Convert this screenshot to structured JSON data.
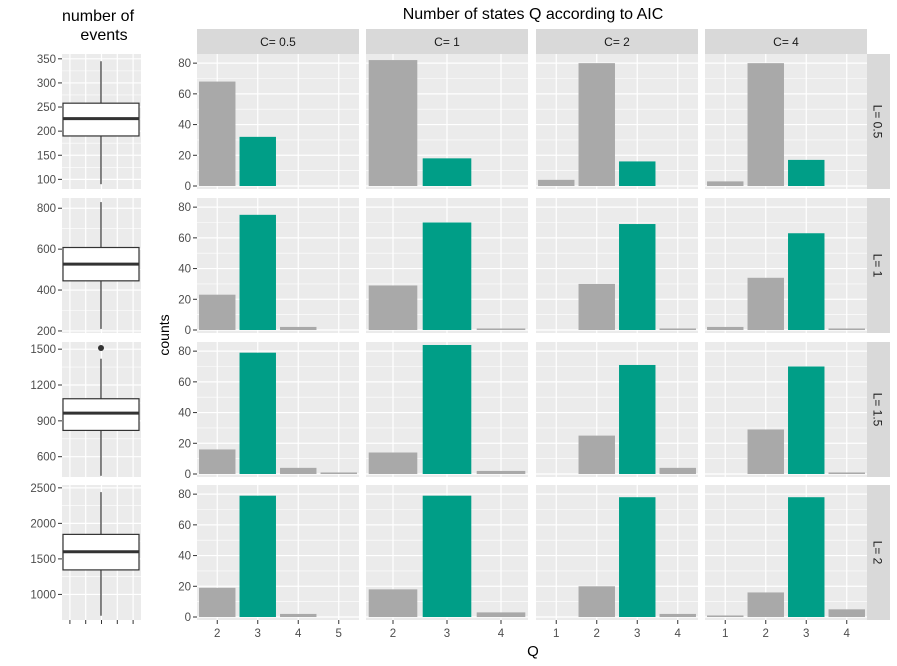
{
  "chart_data": [
    {
      "type": "boxplot",
      "title": "number of events",
      "title_lines": [
        "number of",
        "events"
      ],
      "x_ticks_unlabeled": 5,
      "panels": [
        {
          "strip": "L= 0.5",
          "ylim": [
            80,
            360
          ],
          "yticks": [
            100,
            150,
            200,
            250,
            300,
            350
          ],
          "box": {
            "min": 90,
            "q1": 190,
            "median": 226,
            "q3": 258,
            "max": 345
          },
          "outliers": []
        },
        {
          "strip": "L= 1",
          "ylim": [
            190,
            850
          ],
          "yticks": [
            200,
            400,
            600,
            800
          ],
          "box": {
            "min": 210,
            "q1": 445,
            "median": 527,
            "q3": 608,
            "max": 830
          },
          "outliers": []
        },
        {
          "strip": "L= 1.5",
          "ylim": [
            430,
            1560
          ],
          "yticks": [
            600,
            900,
            1200,
            1500
          ],
          "box": {
            "min": 440,
            "q1": 820,
            "median": 965,
            "q3": 1085,
            "max": 1420
          },
          "outliers": [
            1510
          ]
        },
        {
          "strip": "L= 2",
          "ylim": [
            640,
            2540
          ],
          "yticks": [
            1000,
            1500,
            2000,
            2500
          ],
          "box": {
            "min": 700,
            "q1": 1345,
            "median": 1600,
            "q3": 1845,
            "max": 2440
          },
          "outliers": []
        }
      ]
    },
    {
      "type": "bar",
      "title": "Number of states Q according to AIC",
      "xlabel": "Q",
      "ylabel": "counts",
      "ylim": [
        0,
        84
      ],
      "yticks": [
        0,
        20,
        40,
        60,
        80
      ],
      "highlight_category": 3,
      "colors": {
        "default": "#a9a9a9",
        "highlight": "#009e87",
        "panel_bg": "#ebebeb",
        "strip_bg": "#d9d9d9",
        "grid": "#ffffff"
      },
      "column_strips": [
        "C= 0.5",
        "C= 1",
        "C= 2",
        "C= 4"
      ],
      "row_strips": [
        "L= 0.5",
        "L= 1",
        "L= 1.5",
        "L= 2"
      ],
      "column_categories": [
        [
          2,
          3,
          4,
          5
        ],
        [
          2,
          3,
          4
        ],
        [
          1,
          2,
          3,
          4
        ],
        [
          1,
          2,
          3,
          4
        ]
      ],
      "values": [
        [
          [
            68,
            32,
            0,
            0
          ],
          [
            82,
            18,
            0
          ],
          [
            4,
            80,
            16,
            0
          ],
          [
            3,
            80,
            17,
            0
          ]
        ],
        [
          [
            23,
            75,
            2,
            0
          ],
          [
            29,
            70,
            1
          ],
          [
            0,
            30,
            69,
            1
          ],
          [
            2,
            34,
            63,
            1
          ]
        ],
        [
          [
            16,
            79,
            4,
            1
          ],
          [
            14,
            84,
            2
          ],
          [
            0,
            25,
            71,
            4
          ],
          [
            0,
            29,
            70,
            1
          ]
        ],
        [
          [
            19,
            79,
            2,
            0
          ],
          [
            18,
            79,
            3
          ],
          [
            0,
            20,
            78,
            2
          ],
          [
            1,
            16,
            78,
            5
          ]
        ]
      ]
    }
  ]
}
